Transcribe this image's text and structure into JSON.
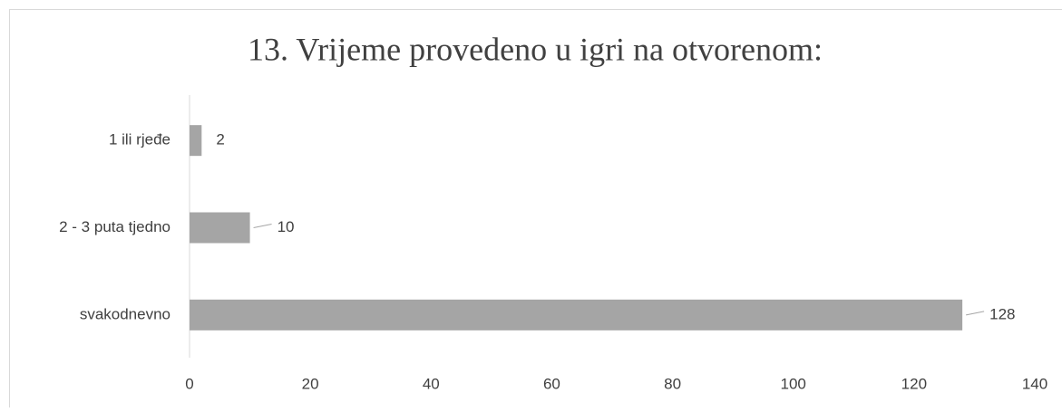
{
  "chart_data": {
    "type": "bar",
    "orientation": "horizontal",
    "title": "13. Vrijeme provedeno u igri na otvorenom:",
    "categories": [
      "1 ili rjeđe",
      "2 - 3 puta tjedno",
      "svakodnevno"
    ],
    "values": [
      2,
      10,
      128
    ],
    "color": "#a5a5a5",
    "xlim": [
      0,
      140
    ],
    "xticks": [
      0,
      20,
      40,
      60,
      80,
      100,
      120,
      140
    ],
    "grid": false
  }
}
